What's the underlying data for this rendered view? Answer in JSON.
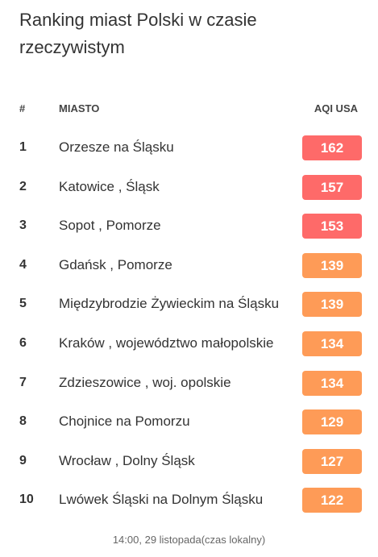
{
  "title": "Ranking miast Polski w czasie rzeczywistym",
  "columns": {
    "rank": "#",
    "city": "MIASTO",
    "aqi": "AQI USA"
  },
  "colors": {
    "unhealthy": "#fe6a69",
    "sensitive": "#fe9b57"
  },
  "rows": [
    {
      "rank": "1",
      "city": "Orzesze na Śląsku",
      "aqi": "162",
      "level": "unhealthy"
    },
    {
      "rank": "2",
      "city": "Katowice , Śląsk",
      "aqi": "157",
      "level": "unhealthy"
    },
    {
      "rank": "3",
      "city": "Sopot , Pomorze",
      "aqi": "153",
      "level": "unhealthy"
    },
    {
      "rank": "4",
      "city": "Gdańsk , Pomorze",
      "aqi": "139",
      "level": "sensitive"
    },
    {
      "rank": "5",
      "city": "Międzybrodzie Żywieckim na Śląsku",
      "aqi": "139",
      "level": "sensitive"
    },
    {
      "rank": "6",
      "city": "Kraków , województwo małopolskie",
      "aqi": "134",
      "level": "sensitive"
    },
    {
      "rank": "7",
      "city": "Zdzieszowice , woj. opolskie",
      "aqi": "134",
      "level": "sensitive"
    },
    {
      "rank": "8",
      "city": "Chojnice na Pomorzu",
      "aqi": "129",
      "level": "sensitive"
    },
    {
      "rank": "9",
      "city": "Wrocław , Dolny Śląsk",
      "aqi": "127",
      "level": "sensitive"
    },
    {
      "rank": "10",
      "city": "Lwówek Śląski na Dolnym Śląsku",
      "aqi": "122",
      "level": "sensitive"
    }
  ],
  "footer": "14:00, 29 listopada(czas lokalny)"
}
